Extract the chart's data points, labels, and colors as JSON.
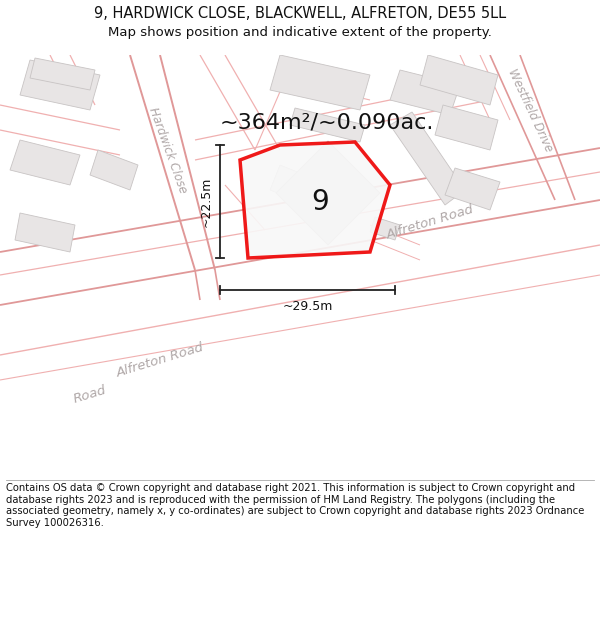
{
  "title_line1": "9, HARDWICK CLOSE, BLACKWELL, ALFRETON, DE55 5LL",
  "title_line2": "Map shows position and indicative extent of the property.",
  "footer": "Contains OS data © Crown copyright and database right 2021. This information is subject to Crown copyright and database rights 2023 and is reproduced with the permission of HM Land Registry. The polygons (including the associated geometry, namely x, y co-ordinates) are subject to Crown copyright and database rights 2023 Ordnance Survey 100026316.",
  "area_label": "~364m²/~0.090ac.",
  "property_number": "9",
  "dim_width": "~29.5m",
  "dim_height": "~22.5m",
  "road_label_main": "Alfreton Road",
  "road_label_bottom": "Alfreton Road",
  "road_label_bottom2": "Road",
  "street_label": "Hardwick Close",
  "street_label2": "Westfield Drive",
  "map_bg": "#ffffff",
  "plot_outline_color": "#ee0000",
  "road_line_color": "#f0b0b0",
  "road_line_color2": "#e09898",
  "building_fill": "#e8e5e5",
  "building_edge": "#c8c4c4",
  "dim_line_color": "#222222",
  "text_color": "#111111",
  "road_text_color": "#b0a8a8",
  "title_fontsize": 10.5,
  "subtitle_fontsize": 9.5,
  "area_fontsize": 16,
  "dim_fontsize": 9,
  "number_fontsize": 20,
  "footer_fontsize": 7.2
}
